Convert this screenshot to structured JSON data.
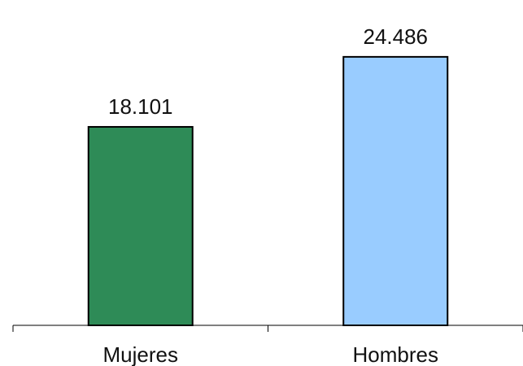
{
  "chart_data": {
    "type": "bar",
    "title": "",
    "xlabel": "",
    "ylabel": "",
    "categories": [
      "Mujeres",
      "Hombres"
    ],
    "values": [
      18101,
      24486
    ],
    "value_labels": [
      "18.101",
      "24.486"
    ],
    "colors": [
      "#2e8b57",
      "#99ccff"
    ],
    "ylim": [
      0,
      27000
    ],
    "grid": false,
    "legend": "none"
  }
}
